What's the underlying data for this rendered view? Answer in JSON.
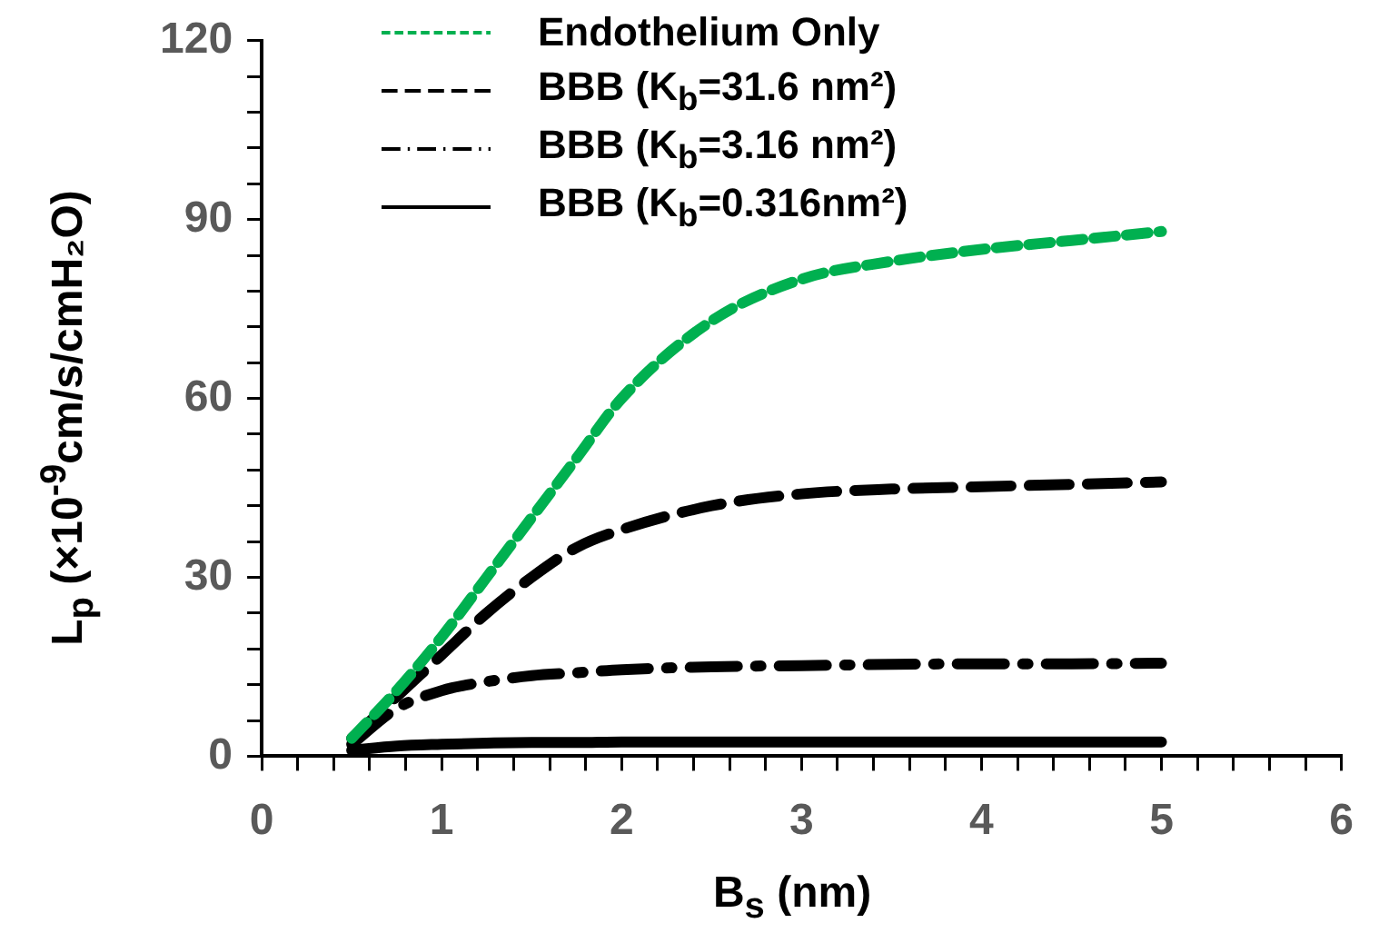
{
  "chart_data": {
    "type": "line",
    "xlabel": "B$_{s}$ (nm)",
    "ylabel": "L$_{p}$ (×10$^{-9}$cm/s/cmH₂O)",
    "xlim": [
      0,
      6
    ],
    "xticks": [
      0,
      {
        "value": 0.2,
        "label": null
      },
      {
        "value": 0.4,
        "label": null
      },
      {
        "value": 0.6,
        "label": null
      },
      {
        "value": 0.8,
        "label": null
      },
      1,
      {
        "value": 1.2,
        "label": null
      },
      {
        "value": 1.4,
        "label": null
      },
      {
        "value": 1.6,
        "label": null
      },
      {
        "value": 1.8,
        "label": null
      },
      2,
      {
        "value": 2.2,
        "label": null
      },
      {
        "value": 2.4,
        "label": null
      },
      {
        "value": 2.6,
        "label": null
      },
      {
        "value": 2.8,
        "label": null
      },
      3,
      {
        "value": 3.2,
        "label": null
      },
      {
        "value": 3.4,
        "label": null
      },
      {
        "value": 3.6,
        "label": null
      },
      {
        "value": 3.8,
        "label": null
      },
      4,
      {
        "value": 4.2,
        "label": null
      },
      {
        "value": 4.4,
        "label": null
      },
      {
        "value": 4.6,
        "label": null
      },
      {
        "value": 4.8,
        "label": null
      },
      5,
      {
        "value": 5.2,
        "label": null
      },
      {
        "value": 5.4,
        "label": null
      },
      {
        "value": 5.6,
        "label": null
      },
      {
        "value": 5.8,
        "label": null
      },
      6
    ],
    "ylim": [
      0,
      120
    ],
    "yticks": [
      0,
      {
        "value": 6,
        "label": null
      },
      {
        "value": 12,
        "label": null
      },
      {
        "value": 18,
        "label": null
      },
      {
        "value": 24,
        "label": null
      },
      30,
      {
        "value": 36,
        "label": null
      },
      {
        "value": 42,
        "label": null
      },
      {
        "value": 48,
        "label": null
      },
      {
        "value": 54,
        "label": null
      },
      60,
      {
        "value": 66,
        "label": null
      },
      {
        "value": 72,
        "label": null
      },
      {
        "value": 78,
        "label": null
      },
      {
        "value": 84,
        "label": null
      },
      90,
      {
        "value": 96,
        "label": null
      },
      {
        "value": 102,
        "label": null
      },
      {
        "value": 108,
        "label": null
      },
      {
        "value": 114,
        "label": null
      },
      120
    ],
    "grid": false,
    "legend": "top left",
    "marker": "none",
    "x": [
      0.5,
      0.75,
      1,
      1.25,
      1.5,
      1.75,
      2,
      2.5,
      3,
      3.5,
      4,
      4.5,
      5
    ],
    "series": [
      {
        "name": "Endothelium Only",
        "color": "#00b050",
        "line_style": "dotted",
        "values": [
          3,
          11,
          20,
          30,
          40,
          50,
          60,
          73,
          80,
          83,
          85,
          86.5,
          88
        ]
      },
      {
        "name": "BBB (K$_{b}$=31.6 nm²)",
        "color": "#000000",
        "line_style": "dashed",
        "values": [
          3,
          10,
          17,
          24,
          30,
          35,
          38,
          42,
          44,
          44.8,
          45.2,
          45.6,
          46
        ]
      },
      {
        "name": "BBB (K$_{b}$=3.16 nm²)",
        "color": "#000000",
        "line_style": "dashdot",
        "values": [
          2,
          8,
          11,
          12.5,
          13.5,
          14,
          14.5,
          15,
          15.2,
          15.4,
          15.5,
          15.5,
          15.6
        ]
      },
      {
        "name": "BBB (K$_{b}$=0.316nm²)",
        "color": "#000000",
        "line_style": "solid",
        "values": [
          1,
          1.7,
          2,
          2.2,
          2.3,
          2.3,
          2.4,
          2.4,
          2.4,
          2.4,
          2.4,
          2.4,
          2.4
        ]
      }
    ]
  }
}
